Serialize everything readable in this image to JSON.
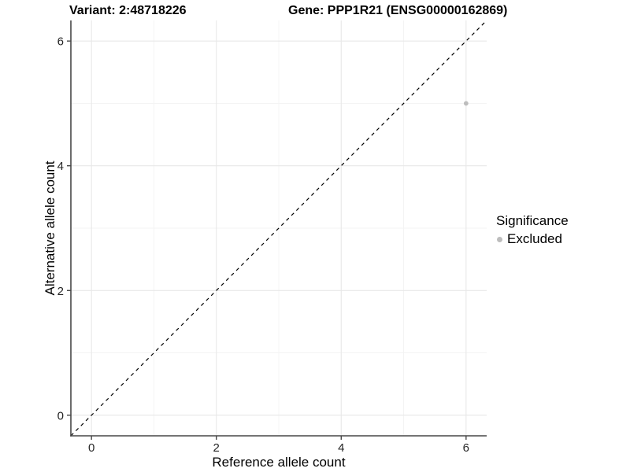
{
  "titles": {
    "variant": "Variant: 2:48718226",
    "gene": "Gene: PPP1R21 (ENSG00000162869)"
  },
  "axes": {
    "x": {
      "label": "Reference allele count",
      "tick_labels": [
        "0",
        "2",
        "4",
        "6"
      ]
    },
    "y": {
      "label": "Alternative allele count",
      "tick_labels": [
        "0",
        "2",
        "4",
        "6"
      ]
    }
  },
  "legend": {
    "title": "Significance",
    "items": [
      {
        "label": "Excluded",
        "color": "#bdbdbd",
        "icon": "point-icon"
      }
    ]
  },
  "colors": {
    "background": "#ffffff",
    "grid_major": "#e8e8e8",
    "grid_minor": "#f3f3f3",
    "axis_line": "#474747",
    "tick_mark": "#474747",
    "tick_text": "#262626",
    "point": "#bdbdbd",
    "identity_line": "#000000"
  },
  "chart_data": {
    "type": "scatter",
    "title": "Variant: 2:48718226 | Gene: PPP1R21 (ENSG00000162869)",
    "xlabel": "Reference allele count",
    "ylabel": "Alternative allele count",
    "xlim": [
      -0.33,
      6.33
    ],
    "ylim": [
      -0.33,
      6.33
    ],
    "x_ticks": [
      0,
      2,
      4,
      6
    ],
    "y_ticks": [
      0,
      2,
      4,
      6
    ],
    "x_minor_ticks": [
      1,
      3,
      5
    ],
    "y_minor_ticks": [
      1,
      3,
      5
    ],
    "grid": "major+minor",
    "legend_position": "right",
    "series": [
      {
        "name": "Excluded",
        "marker": "circle",
        "color": "#bdbdbd",
        "points": [
          {
            "x": 6,
            "y": 5
          }
        ]
      }
    ],
    "reference_line": {
      "type": "identity y=x",
      "style": "dashed",
      "x0": -0.33,
      "y0": -0.33,
      "x1": 6.33,
      "y1": 6.33
    }
  }
}
